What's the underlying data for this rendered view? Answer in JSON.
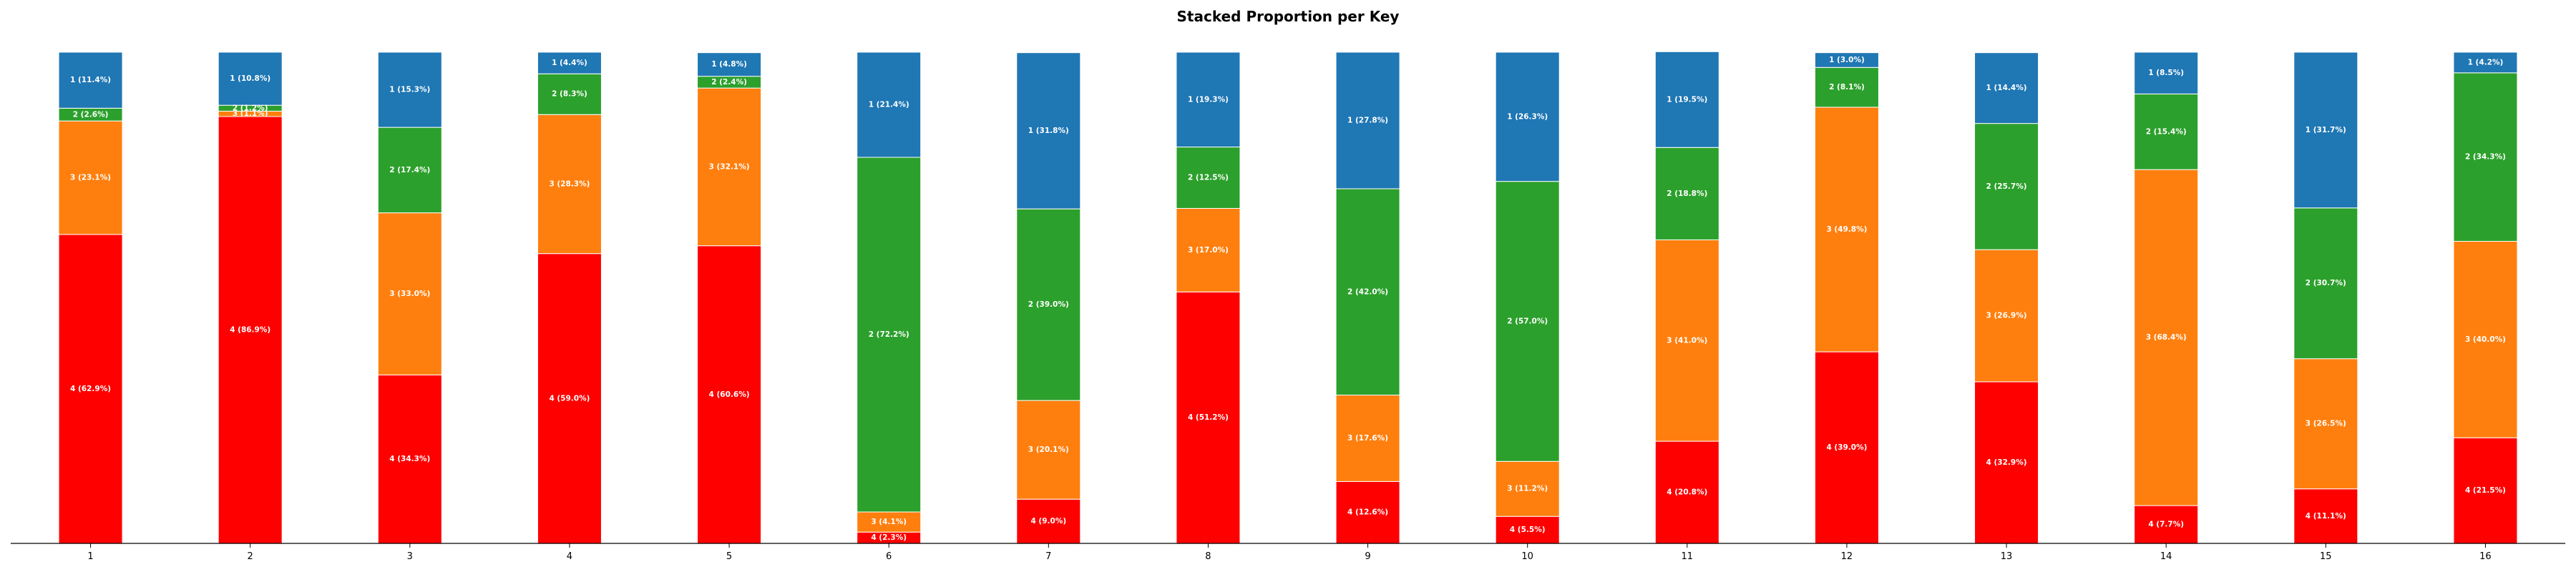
{
  "chart_data": {
    "type": "bar",
    "stacked": true,
    "title": "Stacked Proportion per Key",
    "xlabel": "",
    "ylabel": "",
    "ylim": [
      0,
      100
    ],
    "categories": [
      "1",
      "2",
      "3",
      "4",
      "5",
      "6",
      "7",
      "8",
      "9",
      "10",
      "11",
      "12",
      "13",
      "14",
      "15",
      "16"
    ],
    "series": [
      {
        "name": "4",
        "color": "#ff0000",
        "values": [
          62.9,
          86.9,
          34.3,
          59.0,
          60.6,
          2.3,
          9.0,
          51.2,
          12.6,
          5.5,
          20.8,
          39.0,
          32.9,
          7.7,
          11.1,
          21.5
        ],
        "labels": [
          "4 (62.9%)",
          "4 (86.9%)",
          "4 (34.3%)",
          "4 (59.0%)",
          "4 (60.6%)",
          "4 (2.3%)",
          "4 (9.0%)",
          "4 (51.2%)",
          "4 (12.6%)",
          "4 (5.5%)",
          "4 (20.8%)",
          "4 (39.0%)",
          "4 (32.9%)",
          "4 (7.7%)",
          "4 (11.1%)",
          "4 (21.5%)"
        ]
      },
      {
        "name": "3",
        "color": "#ff7f0e",
        "values": [
          23.1,
          1.1,
          33.0,
          28.3,
          32.1,
          4.1,
          20.1,
          17.0,
          17.6,
          11.2,
          41.0,
          49.8,
          26.9,
          68.4,
          26.5,
          40.0
        ],
        "labels": [
          "3 (23.1%)",
          "3 (1.1%)",
          "3 (33.0%)",
          "3 (28.3%)",
          "3 (32.1%)",
          "3 (4.1%)",
          "3 (20.1%)",
          "3 (17.0%)",
          "3 (17.6%)",
          "3 (11.2%)",
          "3 (41.0%)",
          "3 (49.8%)",
          "3 (26.9%)",
          "3 (68.4%)",
          "3 (26.5%)",
          "3 (40.0%)"
        ]
      },
      {
        "name": "2",
        "color": "#2ca02c",
        "values": [
          2.6,
          1.2,
          17.4,
          8.3,
          2.4,
          72.2,
          39.0,
          12.5,
          42.0,
          57.0,
          18.8,
          8.1,
          25.7,
          15.4,
          30.7,
          34.3
        ],
        "labels": [
          "2 (2.6%)",
          "2 (1.2%)",
          "2 (17.4%)",
          "2 (8.3%)",
          "2 (2.4%)",
          "2 (72.2%)",
          "2 (39.0%)",
          "2 (12.5%)",
          "2 (42.0%)",
          "2 (57.0%)",
          "2 (18.8%)",
          "2 (8.1%)",
          "2 (25.7%)",
          "2 (15.4%)",
          "2 (30.7%)",
          "2 (34.3%)"
        ]
      },
      {
        "name": "1",
        "color": "#1f77b4",
        "values": [
          11.4,
          10.8,
          15.3,
          4.4,
          4.8,
          21.4,
          31.8,
          19.3,
          27.8,
          26.3,
          19.5,
          3.0,
          14.4,
          8.5,
          31.7,
          4.2
        ],
        "labels": [
          "1 (11.4%)",
          "1 (10.8%)",
          "1 (15.3%)",
          "1 (4.4%)",
          "1 (4.8%)",
          "1 (21.4%)",
          "1 (31.8%)",
          "1 (19.3%)",
          "1 (27.8%)",
          "1 (26.3%)",
          "1 (19.5%)",
          "1 (3.0%)",
          "1 (14.4%)",
          "1 (8.5%)",
          "1 (31.7%)",
          "1 (4.2%)"
        ]
      }
    ],
    "grid": false,
    "legend": "none"
  }
}
